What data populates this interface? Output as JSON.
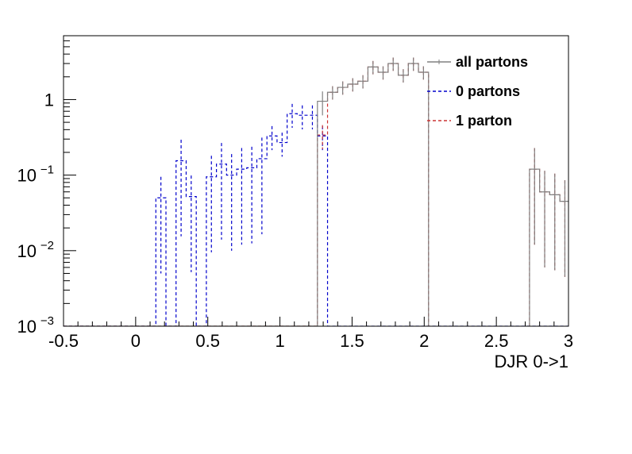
{
  "chart_data": {
    "type": "histogram",
    "title": "",
    "xlabel": "DJR 0->1",
    "ylabel": "",
    "xlim": [
      -0.5,
      3
    ],
    "ylim": [
      0.001,
      7
    ],
    "ylog": true,
    "grid": false,
    "legend_position": "top-right",
    "bin_width": 0.07,
    "x_tick_labels": [
      "-0.5",
      "0",
      "0.5",
      "1",
      "1.5",
      "2",
      "2.5",
      "3"
    ],
    "y_tick_labels": [
      {
        "value": 0.001,
        "base": "10",
        "exp": "-3"
      },
      {
        "value": 0.01,
        "base": "10",
        "exp": "-2"
      },
      {
        "value": 0.1,
        "base": "10",
        "exp": "-1"
      },
      {
        "value": 1,
        "base": "1",
        "exp": ""
      }
    ],
    "series": [
      {
        "name": "all partons",
        "color": "#808080",
        "line_style": "solid",
        "bins": [
          {
            "x": 1.26,
            "y": 0.95
          },
          {
            "x": 1.33,
            "y": 1.25
          },
          {
            "x": 1.4,
            "y": 1.45
          },
          {
            "x": 1.47,
            "y": 1.6
          },
          {
            "x": 1.54,
            "y": 1.75
          },
          {
            "x": 1.61,
            "y": 2.7
          },
          {
            "x": 1.68,
            "y": 2.3
          },
          {
            "x": 1.75,
            "y": 3.0
          },
          {
            "x": 1.82,
            "y": 2.1
          },
          {
            "x": 1.89,
            "y": 3.0
          },
          {
            "x": 1.96,
            "y": 2.3
          },
          {
            "x": 2.73,
            "y": 0.12
          },
          {
            "x": 2.8,
            "y": 0.06
          },
          {
            "x": 2.87,
            "y": 0.055
          },
          {
            "x": 2.94,
            "y": 0.045
          }
        ],
        "lead_in": [
          {
            "x": 1.19,
            "y": 0.65
          }
        ]
      },
      {
        "name": "0 partons",
        "color": "#0000cc",
        "line_style": "dashed",
        "bins": [
          {
            "x": 0.14,
            "y": 0.05
          },
          {
            "x": 0.21,
            "y": 0.001
          },
          {
            "x": 0.28,
            "y": 0.155
          },
          {
            "x": 0.35,
            "y": 0.052
          },
          {
            "x": 0.42,
            "y": 0.001
          },
          {
            "x": 0.49,
            "y": 0.095
          },
          {
            "x": 0.56,
            "y": 0.14
          },
          {
            "x": 0.63,
            "y": 0.1
          },
          {
            "x": 0.7,
            "y": 0.12
          },
          {
            "x": 0.77,
            "y": 0.125
          },
          {
            "x": 0.84,
            "y": 0.165
          },
          {
            "x": 0.91,
            "y": 0.33
          },
          {
            "x": 0.98,
            "y": 0.27
          },
          {
            "x": 1.05,
            "y": 0.65
          },
          {
            "x": 1.12,
            "y": 0.62
          },
          {
            "x": 1.19,
            "y": 0.62
          },
          {
            "x": 1.26,
            "y": 0.33
          }
        ]
      },
      {
        "name": "1 parton",
        "color": "#cc3333",
        "line_style": "dashed",
        "bins": [
          {
            "x": 1.26,
            "y": 0.34
          },
          {
            "x": 1.33,
            "y": 1.25
          },
          {
            "x": 1.4,
            "y": 1.45
          },
          {
            "x": 1.47,
            "y": 1.6
          },
          {
            "x": 1.54,
            "y": 1.75
          },
          {
            "x": 1.61,
            "y": 2.7
          },
          {
            "x": 1.68,
            "y": 2.3
          },
          {
            "x": 1.75,
            "y": 3.0
          },
          {
            "x": 1.82,
            "y": 2.1
          },
          {
            "x": 1.89,
            "y": 3.0
          },
          {
            "x": 1.96,
            "y": 2.3
          },
          {
            "x": 2.73,
            "y": 0.12
          },
          {
            "x": 2.8,
            "y": 0.06
          },
          {
            "x": 2.87,
            "y": 0.055
          },
          {
            "x": 2.94,
            "y": 0.045
          }
        ]
      }
    ]
  }
}
